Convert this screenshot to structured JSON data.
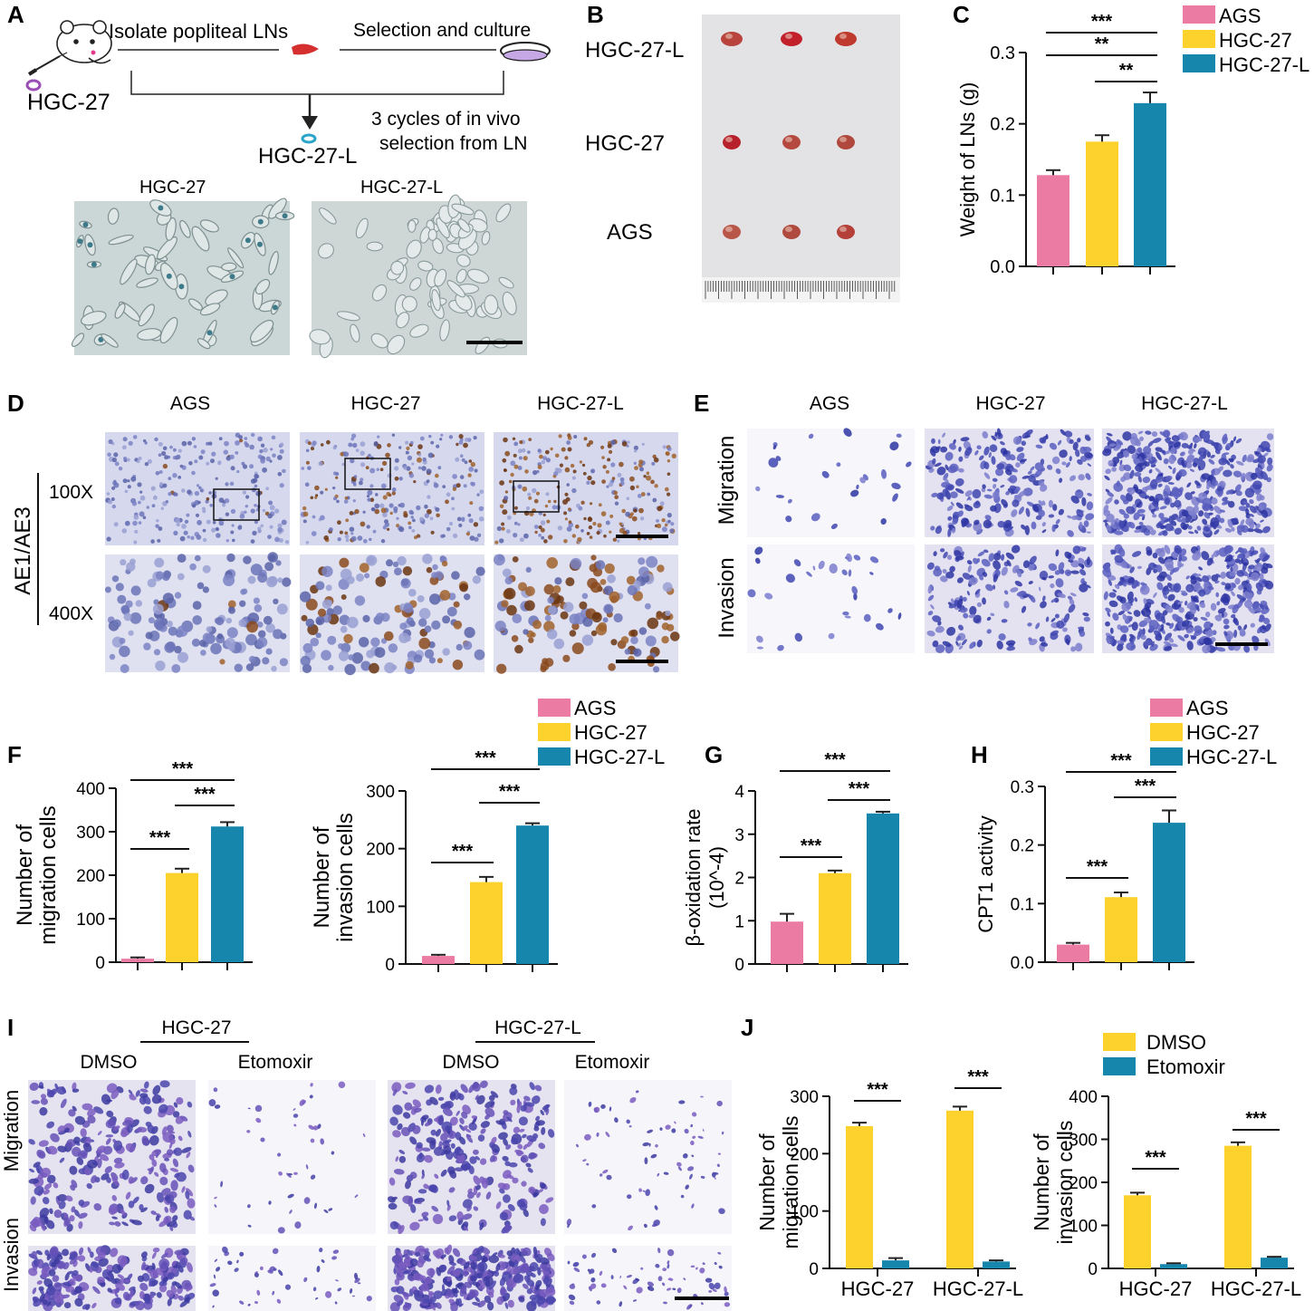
{
  "colors": {
    "AGS": "#ec7ba3",
    "HGC-27": "#fdd22c",
    "HGC-27-L": "#1686ad",
    "DMSO": "#fdd22c",
    "Etomoxir": "#1686ad"
  },
  "panel_letters": [
    "A",
    "B",
    "C",
    "D",
    "E",
    "F",
    "G",
    "H",
    "I",
    "J"
  ],
  "panelA": {
    "cell_label": "HGC-27",
    "step1": "Isolate popliteal LNs",
    "step2": "Selection and culture",
    "cycles_line1": "3 cycles of  in vivo",
    "cycles_line2": "selection from LN",
    "result": "HGC-27-L",
    "micro_labels": [
      "HGC-27",
      "HGC-27-L"
    ]
  },
  "panelB": {
    "row_labels": [
      "HGC-27-L",
      "HGC-27",
      "AGS"
    ]
  },
  "panelD": {
    "col_labels": [
      "AGS",
      "HGC-27",
      "HGC-27-L"
    ],
    "stain": "AE1/AE3",
    "mag_labels": [
      "100X",
      "400X"
    ]
  },
  "panelE": {
    "col_labels": [
      "AGS",
      "HGC-27",
      "HGC-27-L"
    ],
    "row_labels": [
      "Migration",
      "Invasion"
    ]
  },
  "panelI": {
    "groups": [
      "HGC-27",
      "HGC-27-L"
    ],
    "treatments": [
      "DMSO",
      "Etomoxir",
      "DMSO",
      "Etomoxir"
    ],
    "row_labels": [
      "Migration",
      "Invasion"
    ]
  },
  "legend_cells": [
    "AGS",
    "HGC-27",
    "HGC-27-L"
  ],
  "legend_treat": [
    "DMSO",
    "Etomoxir"
  ],
  "chart_data": [
    {
      "id": "C",
      "type": "bar",
      "categories": [
        "AGS",
        "HGC-27",
        "HGC-27-L"
      ],
      "values": [
        0.128,
        0.175,
        0.229
      ],
      "errors": [
        0.007,
        0.009,
        0.015
      ],
      "ylabel": "Weight of LNs (g)",
      "ylim": [
        0,
        0.3
      ],
      "yticks": [
        "0.0",
        "0.1",
        "0.2",
        "0.3"
      ],
      "significance": [
        {
          "pair": [
            1,
            2
          ],
          "label": "**"
        },
        {
          "pair": [
            0,
            2
          ],
          "label": "**"
        },
        {
          "pair": [
            0,
            2
          ],
          "label": "***"
        }
      ],
      "legend": "top-right"
    },
    {
      "id": "F1",
      "type": "bar",
      "categories": [
        "AGS",
        "HGC-27",
        "HGC-27-L"
      ],
      "values": [
        8,
        205,
        312
      ],
      "errors": [
        3,
        10,
        10
      ],
      "ylabel_lines": [
        "Number of",
        "migration cells"
      ],
      "ylim": [
        0,
        400
      ],
      "yticks": [
        "0",
        "100",
        "200",
        "300",
        "400"
      ],
      "significance": [
        {
          "pair": [
            0,
            1
          ],
          "label": "***"
        },
        {
          "pair": [
            1,
            2
          ],
          "label": "***"
        },
        {
          "pair": [
            0,
            2
          ],
          "label": "***"
        }
      ]
    },
    {
      "id": "F2",
      "type": "bar",
      "categories": [
        "AGS",
        "HGC-27",
        "HGC-27-L"
      ],
      "values": [
        14,
        142,
        240
      ],
      "errors": [
        2,
        9,
        4
      ],
      "ylabel_lines": [
        "Number of",
        "invasion cells"
      ],
      "ylim": [
        0,
        300
      ],
      "yticks": [
        "0",
        "100",
        "200",
        "300"
      ],
      "significance": [
        {
          "pair": [
            0,
            1
          ],
          "label": "***"
        },
        {
          "pair": [
            1,
            2
          ],
          "label": "***"
        },
        {
          "pair": [
            0,
            2
          ],
          "label": "***"
        }
      ]
    },
    {
      "id": "G",
      "type": "bar",
      "categories": [
        "AGS",
        "HGC-27",
        "HGC-27-L"
      ],
      "values": [
        0.98,
        2.1,
        3.48
      ],
      "errors": [
        0.18,
        0.06,
        0.04
      ],
      "ylabel_lines": [
        "β-oxidation rate",
        "(10^-4)"
      ],
      "ylim": [
        0,
        4
      ],
      "yticks": [
        "0",
        "1",
        "2",
        "3",
        "4"
      ],
      "significance": [
        {
          "pair": [
            0,
            1
          ],
          "label": "***"
        },
        {
          "pair": [
            1,
            2
          ],
          "label": "***"
        },
        {
          "pair": [
            0,
            2
          ],
          "label": "***"
        }
      ]
    },
    {
      "id": "H",
      "type": "bar",
      "categories": [
        "AGS",
        "HGC-27",
        "HGC-27-L"
      ],
      "values": [
        0.03,
        0.111,
        0.238
      ],
      "errors": [
        0.003,
        0.008,
        0.021
      ],
      "ylabel": "CPT1 activity",
      "ylim": [
        0,
        0.3
      ],
      "yticks": [
        "0.0",
        "0.1",
        "0.2",
        "0.3"
      ],
      "significance": [
        {
          "pair": [
            0,
            1
          ],
          "label": "***"
        },
        {
          "pair": [
            1,
            2
          ],
          "label": "***"
        },
        {
          "pair": [
            0,
            2
          ],
          "label": "***"
        }
      ]
    },
    {
      "id": "J1",
      "type": "bar",
      "categories": [
        "HGC-27",
        "HGC-27-L"
      ],
      "series": [
        {
          "name": "DMSO",
          "values": [
            248,
            275
          ],
          "errors": [
            6,
            7
          ]
        },
        {
          "name": "Etomoxir",
          "values": [
            14,
            12
          ],
          "errors": [
            4,
            2
          ]
        }
      ],
      "ylabel_lines": [
        "Number of",
        "migration cells"
      ],
      "ylim": [
        0,
        300
      ],
      "yticks": [
        "0",
        "100",
        "200",
        "300"
      ],
      "significance": [
        {
          "group": 0,
          "label": "***"
        },
        {
          "group": 1,
          "label": "***"
        }
      ]
    },
    {
      "id": "J2",
      "type": "bar",
      "categories": [
        "HGC-27",
        "HGC-27-L"
      ],
      "series": [
        {
          "name": "DMSO",
          "values": [
            170,
            285
          ],
          "errors": [
            6,
            8
          ]
        },
        {
          "name": "Etomoxir",
          "values": [
            10,
            25
          ],
          "errors": [
            2,
            2
          ]
        }
      ],
      "ylabel_lines": [
        "Number of",
        "invasion cells"
      ],
      "ylim": [
        0,
        400
      ],
      "yticks": [
        "0",
        "100",
        "200",
        "300",
        "400"
      ],
      "significance": [
        {
          "group": 0,
          "label": "***"
        },
        {
          "group": 1,
          "label": "***"
        }
      ],
      "legend": "top-right"
    }
  ]
}
